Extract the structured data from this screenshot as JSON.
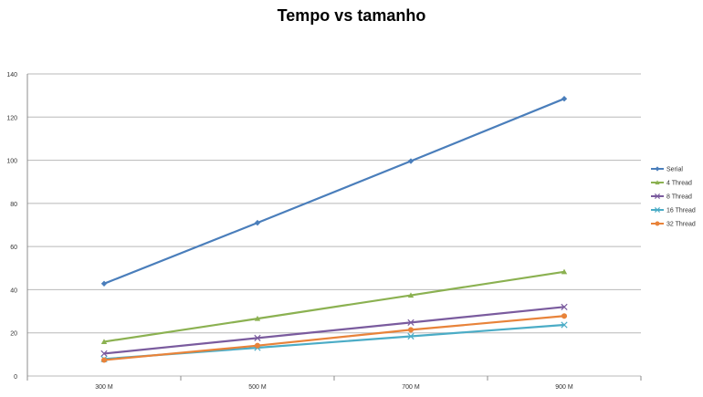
{
  "chart_data": {
    "type": "line",
    "title": "Tempo vs tamanho",
    "xlabel": "",
    "ylabel": "",
    "categories": [
      "300 M",
      "500 M",
      "700 M",
      "900 M"
    ],
    "ylim": [
      0,
      140
    ],
    "yticks": [
      0,
      20,
      40,
      60,
      80,
      100,
      120,
      140
    ],
    "grid": "horizontal",
    "legend_position": "right",
    "series": [
      {
        "name": "Serial",
        "values": [
          42.8,
          71.0,
          99.6,
          128.5
        ],
        "color": "#4a7ebb",
        "marker": "diamond"
      },
      {
        "name": "4 Thread",
        "values": [
          15.9,
          26.6,
          37.4,
          48.3
        ],
        "color": "#8bb151",
        "marker": "triangle"
      },
      {
        "name": "8 Thread",
        "values": [
          10.4,
          17.6,
          24.8,
          32.0
        ],
        "color": "#7a5b9e",
        "marker": "x"
      },
      {
        "name": "16 Thread",
        "values": [
          7.9,
          13.1,
          18.4,
          23.7
        ],
        "color": "#4bacc6",
        "marker": "x"
      },
      {
        "name": "32 Thread",
        "values": [
          7.4,
          14.1,
          21.4,
          27.8
        ],
        "color": "#e8833a",
        "marker": "circle"
      }
    ]
  }
}
